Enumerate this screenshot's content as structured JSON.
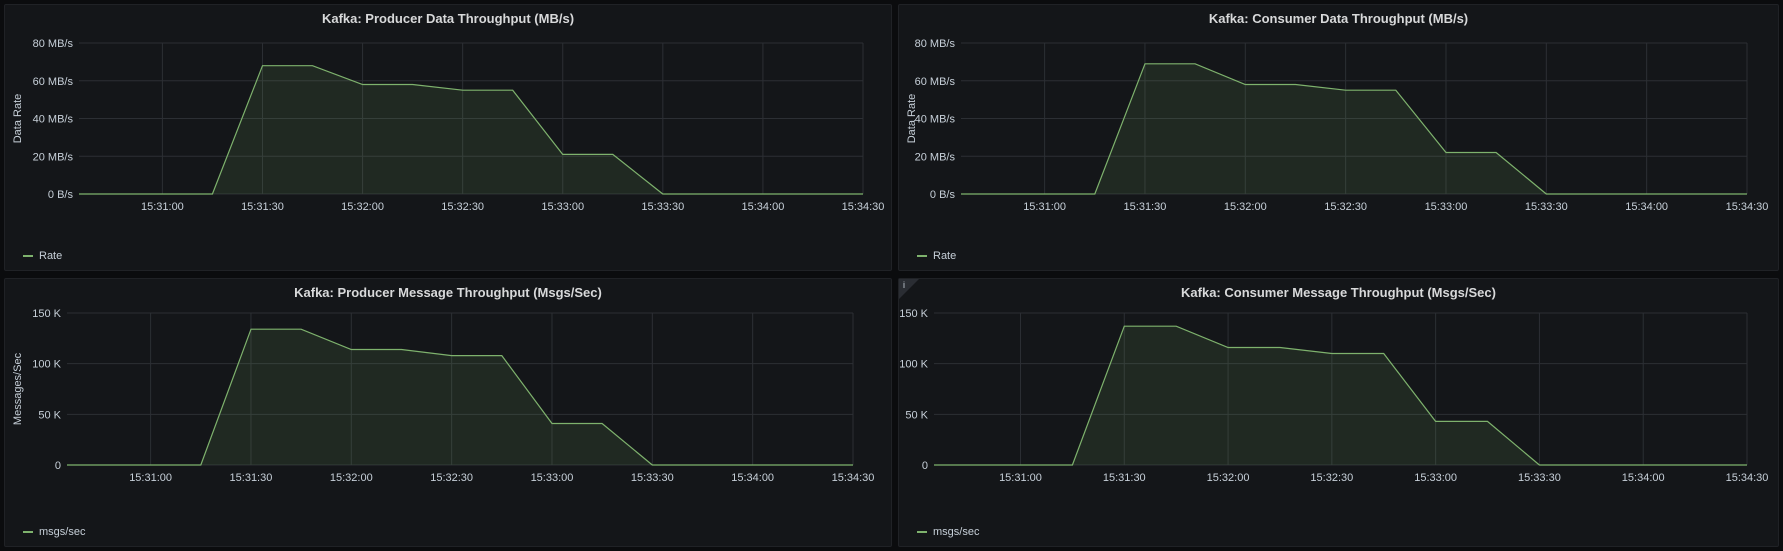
{
  "series_color": "#7eb26d",
  "panels": [
    {
      "title": "Kafka: Producer Data Throughput (MB/s)",
      "legend": "Rate",
      "info_icon": false,
      "chart_data": {
        "type": "area",
        "title": "Kafka: Producer Data Throughput (MB/s)",
        "ylabel": "Data Rate",
        "ylim": [
          0,
          80
        ],
        "yticks": [
          0,
          20,
          40,
          60,
          80
        ],
        "ytick_labels": [
          "0 B/s",
          "20 MB/s",
          "40 MB/s",
          "60 MB/s",
          "80 MB/s"
        ],
        "x_range": [
          "15:30:35",
          "15:34:30"
        ],
        "xticks": [
          "15:31:00",
          "15:31:30",
          "15:32:00",
          "15:32:30",
          "15:33:00",
          "15:33:30",
          "15:34:00",
          "15:34:30"
        ],
        "grid": true,
        "legend_position": "bottom-left",
        "series": [
          {
            "name": "Rate",
            "x": [
              "15:30:35",
              "15:31:15",
              "15:31:30",
              "15:31:45",
              "15:32:00",
              "15:32:15",
              "15:32:30",
              "15:32:45",
              "15:33:00",
              "15:33:15",
              "15:33:30",
              "15:34:30"
            ],
            "values": [
              0,
              0,
              68,
              68,
              58,
              58,
              55,
              55,
              21,
              21,
              0,
              0
            ]
          }
        ]
      }
    },
    {
      "title": "Kafka: Consumer Data Throughput (MB/s)",
      "legend": "Rate",
      "info_icon": false,
      "chart_data": {
        "type": "area",
        "title": "Kafka: Consumer Data Throughput (MB/s)",
        "ylabel": "Data Rate",
        "ylim": [
          0,
          80
        ],
        "yticks": [
          0,
          20,
          40,
          60,
          80
        ],
        "ytick_labels": [
          "0 B/s",
          "20 MB/s",
          "40 MB/s",
          "60 MB/s",
          "80 MB/s"
        ],
        "x_range": [
          "15:30:35",
          "15:34:30"
        ],
        "xticks": [
          "15:31:00",
          "15:31:30",
          "15:32:00",
          "15:32:30",
          "15:33:00",
          "15:33:30",
          "15:34:00",
          "15:34:30"
        ],
        "grid": true,
        "legend_position": "bottom-left",
        "series": [
          {
            "name": "Rate",
            "x": [
              "15:30:35",
              "15:31:15",
              "15:31:30",
              "15:31:45",
              "15:32:00",
              "15:32:15",
              "15:32:30",
              "15:32:45",
              "15:33:00",
              "15:33:15",
              "15:33:30",
              "15:34:30"
            ],
            "values": [
              0,
              0,
              69,
              69,
              58,
              58,
              55,
              55,
              22,
              22,
              0,
              0
            ]
          }
        ]
      }
    },
    {
      "title": "Kafka: Producer Message Throughput (Msgs/Sec)",
      "legend": "msgs/sec",
      "info_icon": false,
      "chart_data": {
        "type": "area",
        "title": "Kafka: Producer Message Throughput (Msgs/Sec)",
        "ylabel": "Messages/Sec",
        "ylim": [
          0,
          150000
        ],
        "yticks": [
          0,
          50000,
          100000,
          150000
        ],
        "ytick_labels": [
          "0",
          "50 K",
          "100 K",
          "150 K"
        ],
        "x_range": [
          "15:30:35",
          "15:34:30"
        ],
        "xticks": [
          "15:31:00",
          "15:31:30",
          "15:32:00",
          "15:32:30",
          "15:33:00",
          "15:33:30",
          "15:34:00",
          "15:34:30"
        ],
        "grid": true,
        "legend_position": "bottom-left",
        "series": [
          {
            "name": "msgs/sec",
            "x": [
              "15:30:35",
              "15:31:15",
              "15:31:30",
              "15:31:45",
              "15:32:00",
              "15:32:15",
              "15:32:30",
              "15:32:45",
              "15:33:00",
              "15:33:15",
              "15:33:30",
              "15:34:30"
            ],
            "values": [
              0,
              0,
              134000,
              134000,
              114000,
              114000,
              108000,
              108000,
              41000,
              41000,
              0,
              0
            ]
          }
        ]
      }
    },
    {
      "title": "Kafka: Consumer Message Throughput (Msgs/Sec)",
      "legend": "msgs/sec",
      "info_icon": true,
      "info_glyph": "i",
      "chart_data": {
        "type": "area",
        "title": "Kafka: Consumer Message Throughput (Msgs/Sec)",
        "ylabel": "",
        "ylim": [
          0,
          150000
        ],
        "yticks": [
          0,
          50000,
          100000,
          150000
        ],
        "ytick_labels": [
          "0",
          "50 K",
          "100 K",
          "150 K"
        ],
        "x_range": [
          "15:30:35",
          "15:34:30"
        ],
        "xticks": [
          "15:31:00",
          "15:31:30",
          "15:32:00",
          "15:32:30",
          "15:33:00",
          "15:33:30",
          "15:34:00",
          "15:34:30"
        ],
        "grid": true,
        "legend_position": "bottom-left",
        "series": [
          {
            "name": "msgs/sec",
            "x": [
              "15:30:35",
              "15:31:15",
              "15:31:30",
              "15:31:45",
              "15:32:00",
              "15:32:15",
              "15:32:30",
              "15:32:45",
              "15:33:00",
              "15:33:15",
              "15:33:30",
              "15:34:30"
            ],
            "values": [
              0,
              0,
              137000,
              137000,
              116000,
              116000,
              110000,
              110000,
              43000,
              43000,
              0,
              0
            ]
          }
        ]
      }
    }
  ]
}
